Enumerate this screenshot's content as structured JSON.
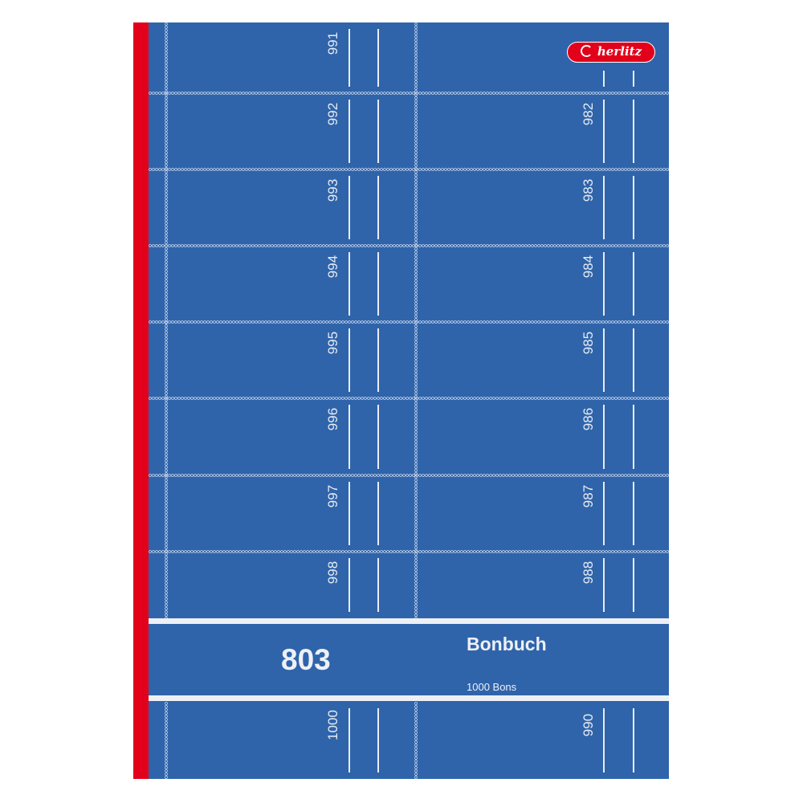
{
  "product": {
    "brand": "herlitz",
    "code": "803",
    "title": "Bonbuch",
    "subtitle": "1000 Bons"
  },
  "colors": {
    "cover": "#2f64aa",
    "spine": "#e2001a",
    "lines": "#e8ecf4"
  },
  "tickets": {
    "left": [
      "991",
      "992",
      "993",
      "994",
      "995",
      "996",
      "997",
      "998"
    ],
    "right": [
      "",
      "982",
      "983",
      "984",
      "985",
      "986",
      "987",
      "988"
    ],
    "bottom_left": "1000",
    "bottom_right": "990"
  }
}
